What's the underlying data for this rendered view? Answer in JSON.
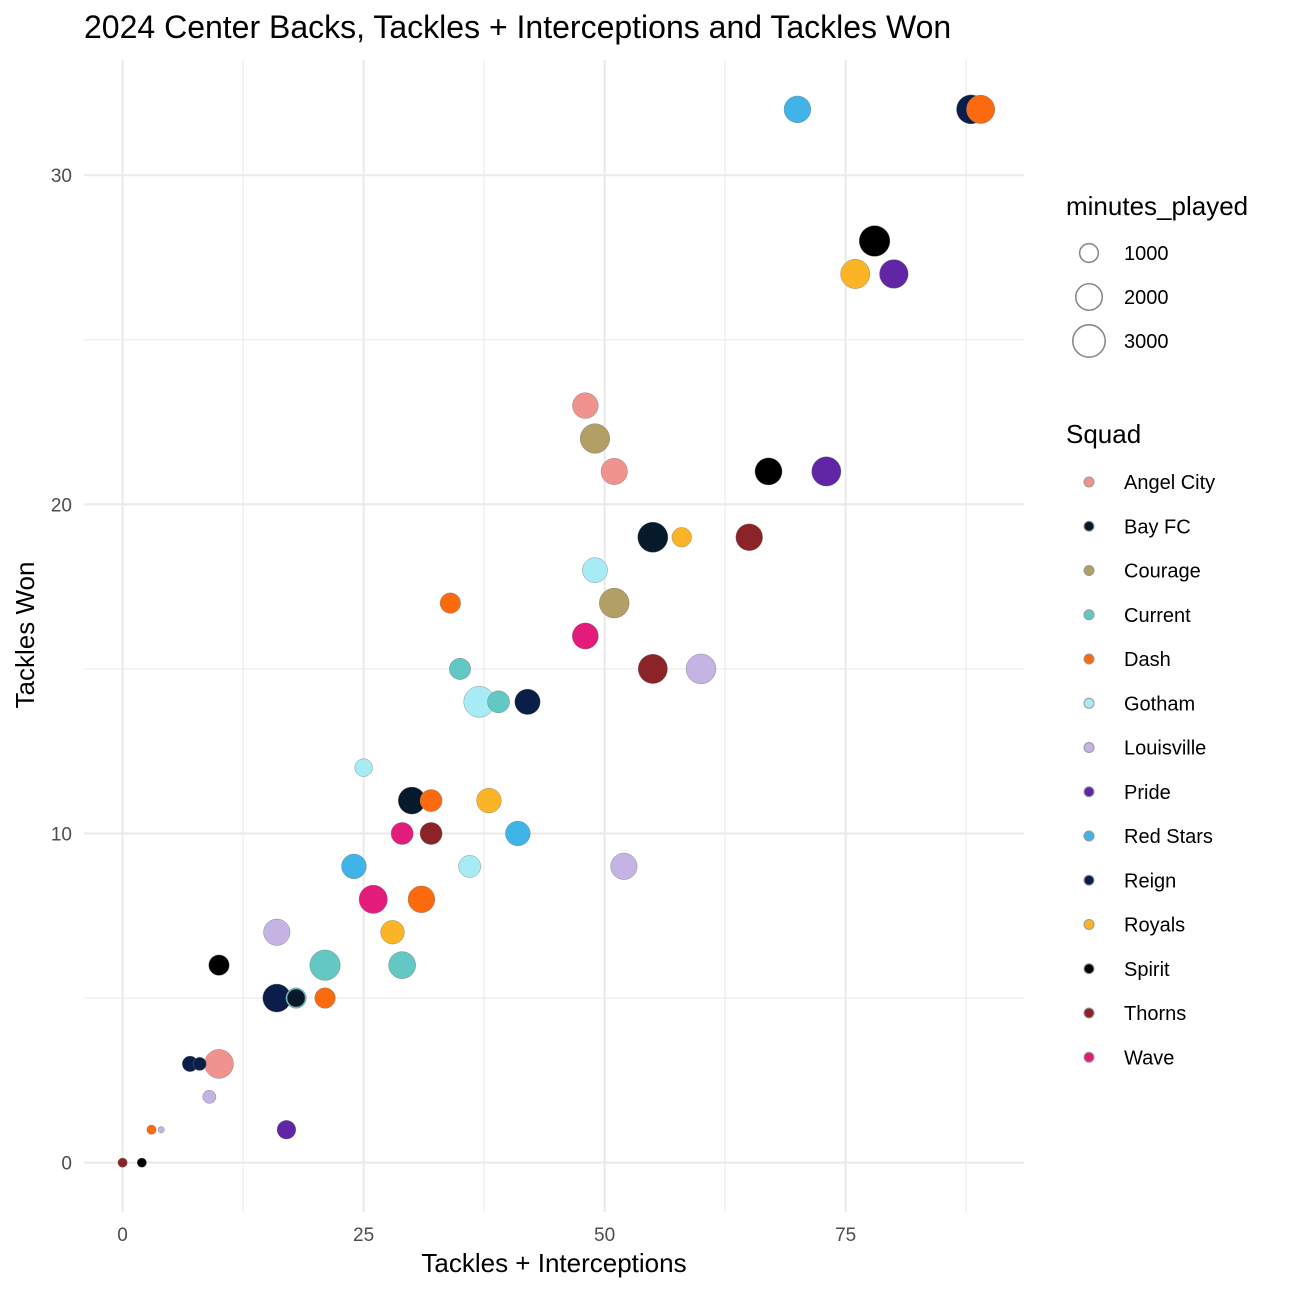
{
  "chart_data": {
    "type": "scatter",
    "title": "2024 Center Backs, Tackles + Interceptions and Tackles Won",
    "xlabel": "Tackles + Interceptions",
    "ylabel": "Tackles Won",
    "xlim": [
      -4,
      93.5
    ],
    "ylim": [
      -1.5,
      33.5
    ],
    "x_ticks": [
      0,
      25,
      50,
      75
    ],
    "y_ticks": [
      0,
      10,
      20,
      30
    ],
    "x_tick_labels": [
      "0",
      "25",
      "50",
      "75"
    ],
    "y_tick_labels": [
      "0",
      "10",
      "20",
      "30"
    ],
    "grid": true,
    "size_legend": {
      "title": "minutes_played",
      "entries": [
        {
          "label": "1000",
          "value": 1000
        },
        {
          "label": "2000",
          "value": 2000
        },
        {
          "label": "3000",
          "value": 3000
        }
      ]
    },
    "color_legend": {
      "title": "Squad",
      "placement": "right",
      "entries": [
        {
          "name": "Angel City",
          "color": "#f0938f"
        },
        {
          "name": "Bay FC",
          "color": "#061a2b"
        },
        {
          "name": "Courage",
          "color": "#b19f66"
        },
        {
          "name": "Current",
          "color": "#63c7c4"
        },
        {
          "name": "Dash",
          "color": "#fb6a0e"
        },
        {
          "name": "Gotham",
          "color": "#a7ecf5"
        },
        {
          "name": "Louisville",
          "color": "#c5b4e3"
        },
        {
          "name": "Pride",
          "color": "#6126a5"
        },
        {
          "name": "Red Stars",
          "color": "#40b4e8"
        },
        {
          "name": "Reign",
          "color": "#0b1e4a"
        },
        {
          "name": "Royals",
          "color": "#fbb425"
        },
        {
          "name": "Spirit",
          "color": "#000000"
        },
        {
          "name": "Thorns",
          "color": "#8c2328"
        },
        {
          "name": "Wave",
          "color": "#e31b7b"
        }
      ]
    },
    "points": [
      {
        "x": 70,
        "y": 32,
        "minutes": 2050,
        "squad": "Red Stars"
      },
      {
        "x": 88,
        "y": 32,
        "minutes": 2400,
        "squad": "Reign"
      },
      {
        "x": 89,
        "y": 32,
        "minutes": 2300,
        "squad": "Dash"
      },
      {
        "x": 78,
        "y": 28,
        "minutes": 2700,
        "squad": "Spirit"
      },
      {
        "x": 76,
        "y": 27,
        "minutes": 2450,
        "squad": "Royals"
      },
      {
        "x": 80,
        "y": 27,
        "minutes": 2350,
        "squad": "Pride"
      },
      {
        "x": 48,
        "y": 23,
        "minutes": 1900,
        "squad": "Angel City"
      },
      {
        "x": 49,
        "y": 22,
        "minutes": 2500,
        "squad": "Courage"
      },
      {
        "x": 51,
        "y": 21,
        "minutes": 2000,
        "squad": "Angel City"
      },
      {
        "x": 67,
        "y": 21,
        "minutes": 2100,
        "squad": "Spirit"
      },
      {
        "x": 73,
        "y": 21,
        "minutes": 2450,
        "squad": "Pride"
      },
      {
        "x": 55,
        "y": 19,
        "minutes": 2600,
        "squad": "Bay FC"
      },
      {
        "x": 58,
        "y": 19,
        "minutes": 1100,
        "squad": "Royals"
      },
      {
        "x": 65,
        "y": 19,
        "minutes": 2050,
        "squad": "Thorns"
      },
      {
        "x": 49,
        "y": 18,
        "minutes": 1800,
        "squad": "Gotham"
      },
      {
        "x": 34,
        "y": 17,
        "minutes": 1200,
        "squad": "Dash"
      },
      {
        "x": 51,
        "y": 17,
        "minutes": 2550,
        "squad": "Courage"
      },
      {
        "x": 48,
        "y": 16,
        "minutes": 1950,
        "squad": "Wave"
      },
      {
        "x": 35,
        "y": 15,
        "minutes": 1300,
        "squad": "Current"
      },
      {
        "x": 55,
        "y": 15,
        "minutes": 2450,
        "squad": "Thorns"
      },
      {
        "x": 60,
        "y": 15,
        "minutes": 2550,
        "squad": "Louisville"
      },
      {
        "x": 37,
        "y": 14,
        "minutes": 2750,
        "squad": "Gotham"
      },
      {
        "x": 39,
        "y": 14,
        "minutes": 1400,
        "squad": "Current"
      },
      {
        "x": 42,
        "y": 14,
        "minutes": 1850,
        "squad": "Reign"
      },
      {
        "x": 25,
        "y": 12,
        "minutes": 900,
        "squad": "Gotham"
      },
      {
        "x": 30,
        "y": 11,
        "minutes": 2100,
        "squad": "Bay FC"
      },
      {
        "x": 32,
        "y": 11,
        "minutes": 1400,
        "squad": "Dash"
      },
      {
        "x": 38,
        "y": 11,
        "minutes": 1750,
        "squad": "Royals"
      },
      {
        "x": 29,
        "y": 10,
        "minutes": 1400,
        "squad": "Wave"
      },
      {
        "x": 32,
        "y": 10,
        "minutes": 1400,
        "squad": "Thorns"
      },
      {
        "x": 41,
        "y": 10,
        "minutes": 1750,
        "squad": "Red Stars"
      },
      {
        "x": 24,
        "y": 9,
        "minutes": 1750,
        "squad": "Red Stars"
      },
      {
        "x": 36,
        "y": 9,
        "minutes": 1400,
        "squad": "Gotham"
      },
      {
        "x": 52,
        "y": 9,
        "minutes": 2000,
        "squad": "Louisville"
      },
      {
        "x": 26,
        "y": 8,
        "minutes": 2300,
        "squad": "Wave"
      },
      {
        "x": 31,
        "y": 8,
        "minutes": 2050,
        "squad": "Dash"
      },
      {
        "x": 16,
        "y": 7,
        "minutes": 2000,
        "squad": "Louisville"
      },
      {
        "x": 28,
        "y": 7,
        "minutes": 1600,
        "squad": "Royals"
      },
      {
        "x": 10,
        "y": 6,
        "minutes": 1200,
        "squad": "Spirit"
      },
      {
        "x": 21,
        "y": 6,
        "minutes": 2650,
        "squad": "Current"
      },
      {
        "x": 29,
        "y": 6,
        "minutes": 2100,
        "squad": "Current"
      },
      {
        "x": 16,
        "y": 5,
        "minutes": 2250,
        "squad": "Reign"
      },
      {
        "x": 18,
        "y": 5,
        "minutes": 1200,
        "squad": "Current"
      },
      {
        "x": 18,
        "y": 5,
        "minutes": 900,
        "squad": "Bay FC"
      },
      {
        "x": 21,
        "y": 5,
        "minutes": 1200,
        "squad": "Dash"
      },
      {
        "x": 7,
        "y": 3,
        "minutes": 700,
        "squad": "Reign"
      },
      {
        "x": 8,
        "y": 3,
        "minutes": 500,
        "squad": "Reign"
      },
      {
        "x": 10,
        "y": 3,
        "minutes": 2400,
        "squad": "Angel City"
      },
      {
        "x": 9,
        "y": 2,
        "minutes": 500,
        "squad": "Louisville"
      },
      {
        "x": 3,
        "y": 1,
        "minutes": 250,
        "squad": "Dash"
      },
      {
        "x": 4,
        "y": 1,
        "minutes": 120,
        "squad": "Louisville"
      },
      {
        "x": 17,
        "y": 1,
        "minutes": 1000,
        "squad": "Pride"
      },
      {
        "x": 0,
        "y": 0,
        "minutes": 250,
        "squad": "Thorns"
      },
      {
        "x": 2,
        "y": 0,
        "minutes": 250,
        "squad": "Spirit"
      }
    ]
  }
}
